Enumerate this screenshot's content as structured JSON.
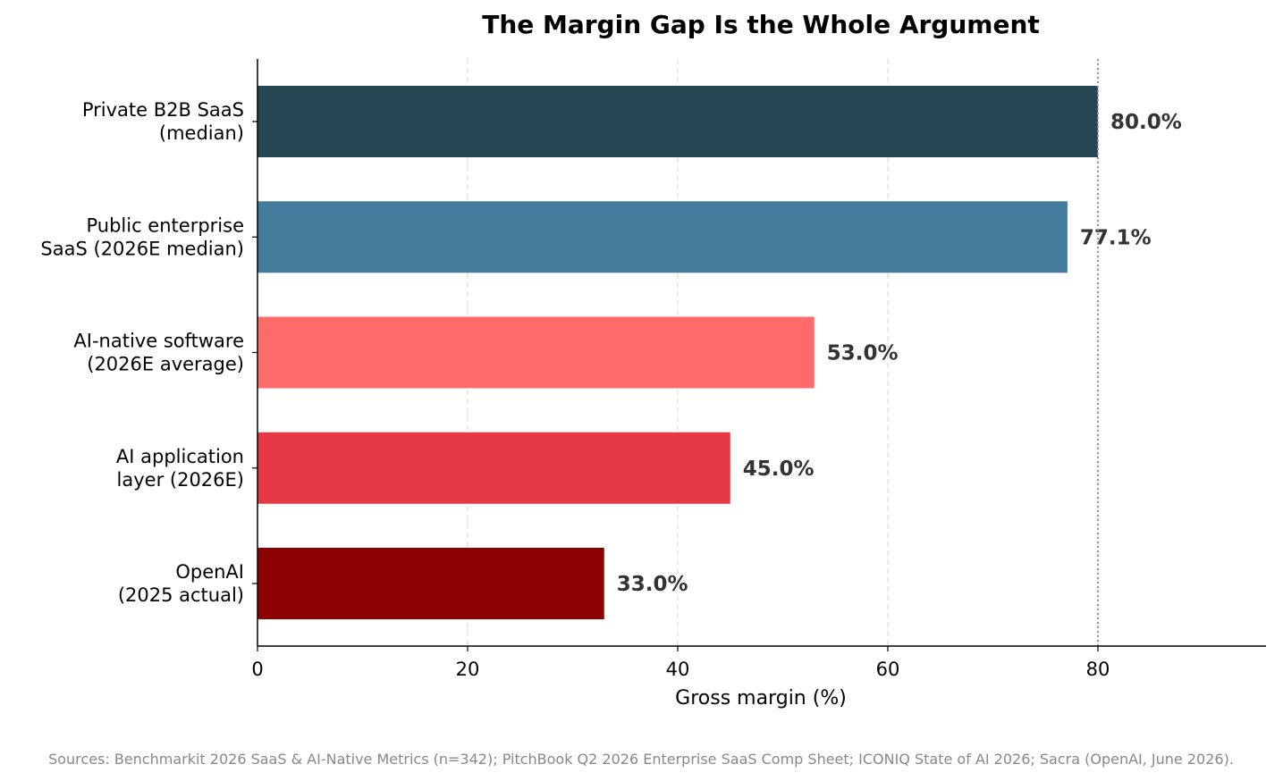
{
  "chart_data": {
    "type": "bar",
    "orientation": "horizontal",
    "title": "The Margin Gap Is the Whole Argument",
    "xlabel": "Gross margin (%)",
    "ylabel": "",
    "xlim": [
      0,
      96
    ],
    "xticks": [
      0,
      20,
      40,
      60,
      80
    ],
    "grid": "vertical dashed",
    "reference_line": 80,
    "categories": [
      [
        "Private B2B SaaS",
        "(median)"
      ],
      [
        "Public enterprise",
        "SaaS (2026E median)"
      ],
      [
        "AI-native software",
        "(2026E average)"
      ],
      [
        "AI application",
        "layer (2026E)"
      ],
      [
        "OpenAI",
        "(2025 actual)"
      ]
    ],
    "values": [
      80.0,
      77.1,
      53.0,
      45.0,
      33.0
    ],
    "value_labels": [
      "80.0%",
      "77.1%",
      "53.0%",
      "45.0%",
      "33.0%"
    ],
    "colors": [
      "#264653",
      "#457b9d",
      "#ff6b6b",
      "#e63946",
      "#8b0000"
    ]
  },
  "source_note": "Sources: Benchmarkit 2026 SaaS & AI-Native Metrics (n=342); PitchBook Q2 2026 Enterprise SaaS Comp Sheet; ICONIQ State of AI 2026; Sacra (OpenAI, June 2026)."
}
